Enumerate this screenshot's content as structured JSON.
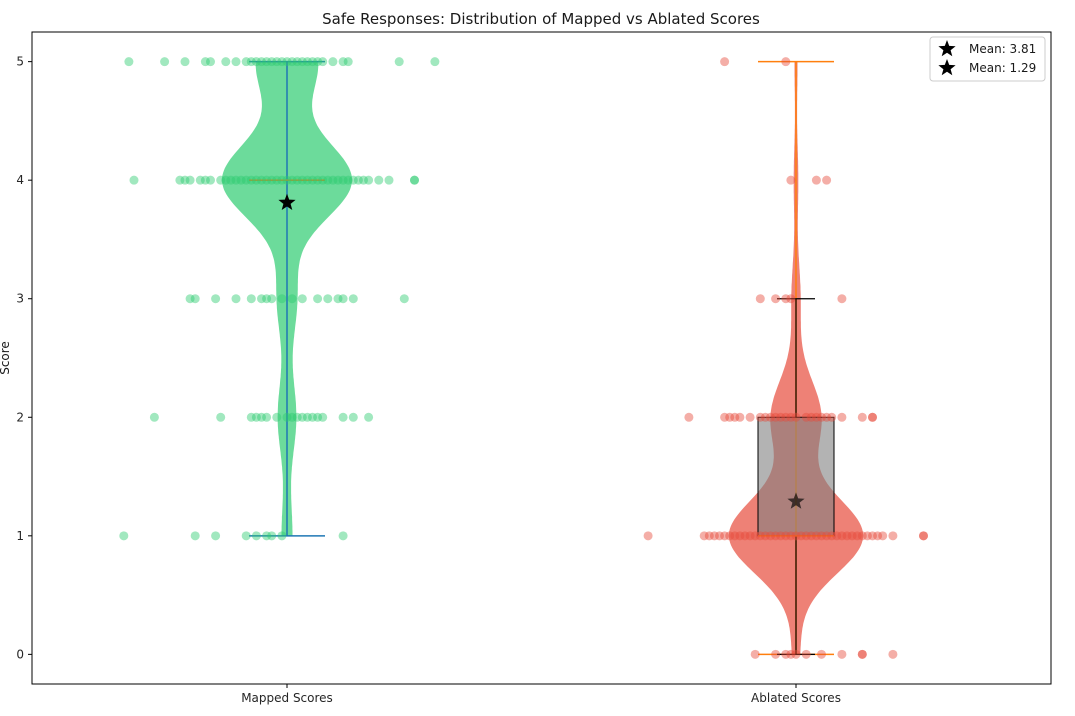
{
  "chart_data": {
    "type": "violin",
    "title": "Safe Responses: Distribution of Mapped vs Ablated Scores",
    "xlabel": "",
    "ylabel": "Score",
    "categories": [
      "Mapped Scores",
      "Ablated Scores"
    ],
    "yticks": [
      "0",
      "1",
      "2",
      "3",
      "4",
      "5"
    ],
    "ylim": [
      -0.25,
      5.25
    ],
    "grid": false,
    "legend_position": "top-right",
    "legend": [
      "Mean: 3.81",
      "Mean: 1.29"
    ],
    "series": [
      {
        "category": "Mapped Scores",
        "color": "#2ecc71",
        "min": 1,
        "max": 5,
        "q1": 4,
        "median": 4,
        "q3": 4,
        "mean": 3.81,
        "score_levels": [
          1,
          2,
          3,
          4,
          5
        ],
        "density": [
          0.07,
          0.12,
          0.13,
          0.84,
          0.4
        ],
        "points": [
          {
            "y": 1,
            "x": [
              -0.32,
              -0.18,
              -0.14,
              -0.08,
              -0.06,
              -0.04,
              -0.03,
              -0.01,
              0.11
            ]
          },
          {
            "y": 2,
            "x": [
              -0.26,
              -0.13,
              -0.07,
              -0.06,
              -0.05,
              -0.04,
              -0.02,
              0.0,
              0.01,
              0.02,
              0.03,
              0.04,
              0.05,
              0.06,
              0.07,
              0.11,
              0.13,
              0.16
            ]
          },
          {
            "y": 3,
            "x": [
              -0.19,
              -0.18,
              -0.14,
              -0.1,
              -0.07,
              -0.05,
              -0.04,
              -0.03,
              -0.01,
              0.01,
              0.03,
              0.06,
              0.08,
              0.1,
              0.11,
              0.13,
              0.23
            ]
          },
          {
            "y": 4,
            "x": [
              -0.3,
              -0.21,
              -0.2,
              -0.19,
              -0.17,
              -0.16,
              -0.15,
              -0.13,
              -0.12,
              -0.11,
              -0.1,
              -0.09,
              -0.08,
              -0.07,
              -0.06,
              -0.05,
              -0.04,
              -0.03,
              -0.02,
              -0.01,
              0.0,
              0.01,
              0.02,
              0.03,
              0.04,
              0.05,
              0.06,
              0.07,
              0.08,
              0.09,
              0.1,
              0.11,
              0.12,
              0.13,
              0.14,
              0.15,
              0.16,
              0.18,
              0.2,
              0.25,
              0.25
            ]
          },
          {
            "y": 5,
            "x": [
              -0.31,
              -0.24,
              -0.2,
              -0.16,
              -0.15,
              -0.12,
              -0.1,
              -0.08,
              -0.07,
              -0.06,
              -0.05,
              -0.04,
              -0.03,
              -0.02,
              -0.01,
              0.0,
              0.01,
              0.02,
              0.03,
              0.04,
              0.05,
              0.06,
              0.07,
              0.09,
              0.11,
              0.12,
              0.22,
              0.29
            ]
          }
        ]
      },
      {
        "category": "Ablated Scores",
        "color": "#e74c3c",
        "min": 0,
        "max": 5,
        "q1": 1,
        "median": 1,
        "q3": 2,
        "mean": 1.29,
        "score_levels": [
          0,
          1,
          2,
          3,
          4,
          5
        ],
        "density": [
          0.05,
          0.88,
          0.33,
          0.06,
          0.03,
          0.02
        ],
        "points": [
          {
            "y": 0,
            "x": [
              -0.08,
              -0.04,
              -0.02,
              -0.01,
              0.0,
              0.02,
              0.05,
              0.09,
              0.13,
              0.13,
              0.19
            ]
          },
          {
            "y": 1,
            "x": [
              -0.29,
              -0.18,
              -0.17,
              -0.16,
              -0.15,
              -0.14,
              -0.13,
              -0.12,
              -0.11,
              -0.1,
              -0.09,
              -0.08,
              -0.07,
              -0.06,
              -0.05,
              -0.04,
              -0.03,
              -0.02,
              -0.01,
              0.0,
              0.01,
              0.02,
              0.03,
              0.04,
              0.05,
              0.06,
              0.07,
              0.08,
              0.09,
              0.1,
              0.11,
              0.12,
              0.13,
              0.14,
              0.15,
              0.16,
              0.17,
              0.19,
              0.25,
              0.25
            ]
          },
          {
            "y": 2,
            "x": [
              -0.21,
              -0.14,
              -0.13,
              -0.12,
              -0.11,
              -0.09,
              -0.07,
              -0.06,
              -0.05,
              -0.04,
              -0.03,
              -0.02,
              -0.01,
              0.0,
              0.02,
              0.03,
              0.04,
              0.05,
              0.06,
              0.07,
              0.09,
              0.13,
              0.15,
              0.15
            ]
          },
          {
            "y": 3,
            "x": [
              -0.07,
              -0.04,
              -0.02,
              -0.01,
              0.09
            ]
          },
          {
            "y": 4,
            "x": [
              -0.01,
              0.04,
              0.06
            ]
          },
          {
            "y": 5,
            "x": [
              -0.14,
              -0.02
            ]
          }
        ]
      }
    ]
  }
}
